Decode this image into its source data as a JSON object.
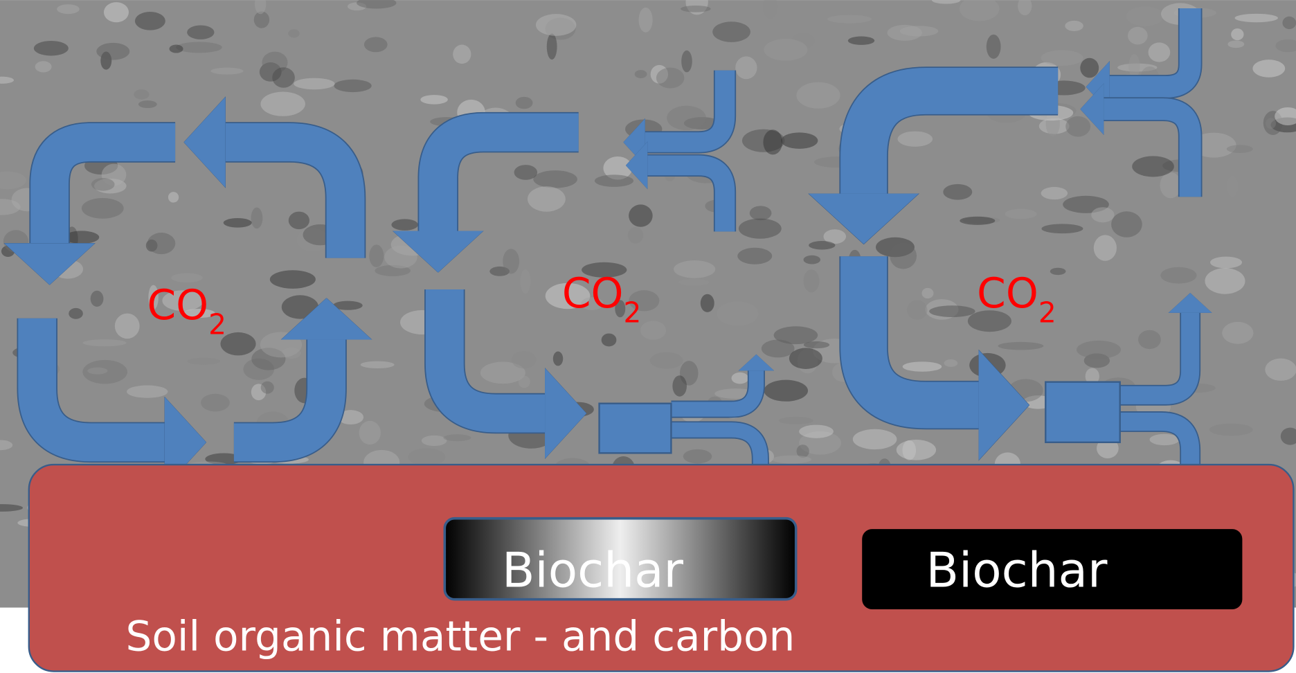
{
  "diagram": {
    "co2_labels": [
      {
        "main": "CO",
        "sub": "2"
      },
      {
        "main": "CO",
        "sub": "2"
      },
      {
        "main": "CO",
        "sub": "2"
      }
    ],
    "biochar_labels": [
      "Biochar",
      "Biochar"
    ],
    "soil_label": "Soil organic matter - and carbon"
  }
}
